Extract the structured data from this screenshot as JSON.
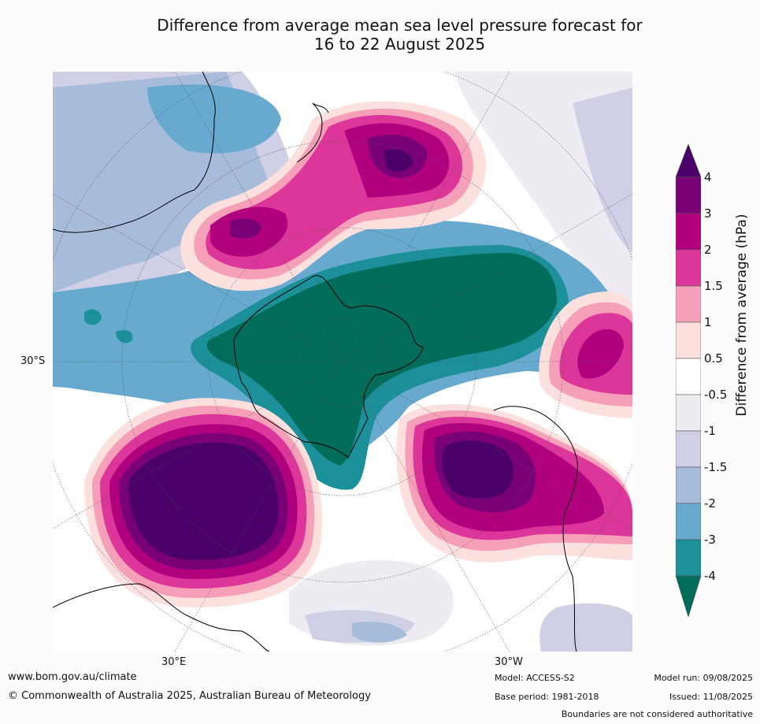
{
  "title": {
    "line1": "Difference from average mean sea level pressure forecast for",
    "line2": "16 to 22 August 2025"
  },
  "map": {
    "lat_label": "30°S",
    "lon_labels": [
      "30°E",
      "30°W"
    ]
  },
  "colorbar": {
    "title": "Difference from average (hPa)",
    "ticks": [
      "4",
      "3",
      "2",
      "1.5",
      "1",
      "0.5",
      "-0.5",
      "-1",
      "-1.5",
      "-2",
      "-3",
      "-4"
    ],
    "colors": [
      "#4a0068",
      "#7a0078",
      "#b0007e",
      "#dc369a",
      "#f5a0b8",
      "#fce0de",
      "#ffffff",
      "#efebf3",
      "#cfd0e6",
      "#a7bbdb",
      "#67a9cf",
      "#1c9099",
      "#016c59"
    ]
  },
  "footer": {
    "website": "www.bom.gov.au/climate",
    "copyright": "© Commonwealth of Australia 2025, Australian Bureau of Meteorology",
    "model": "Model: ACCESS-S2",
    "base_period": "Base period: 1981-2018",
    "model_run": "Model run: 09/08/2025",
    "issued": "Issued: 11/08/2025",
    "disclaimer": "Boundaries are not considered authoritative"
  }
}
